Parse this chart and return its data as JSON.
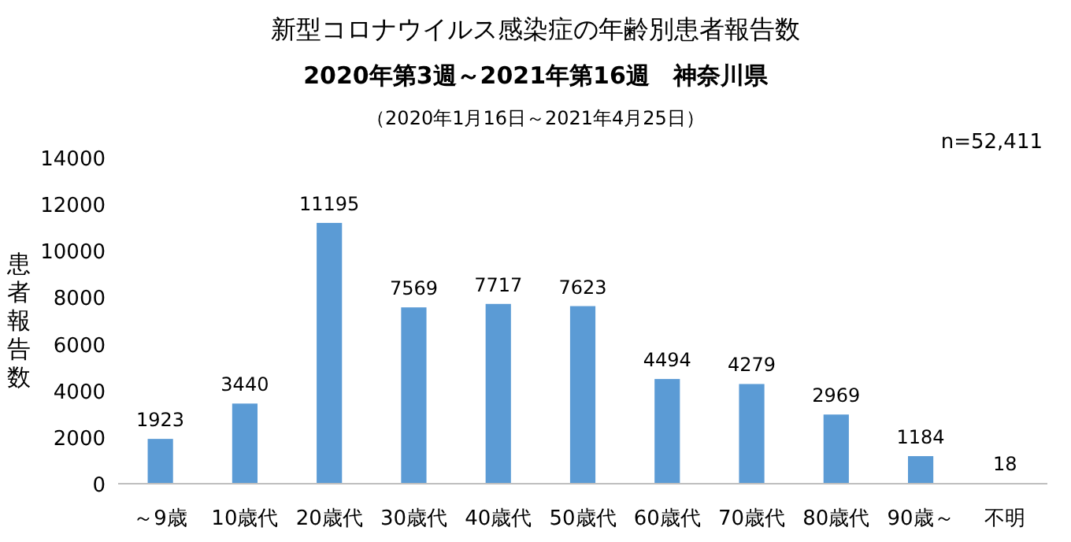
{
  "chart_data": {
    "type": "bar",
    "title": "新型コロナウイルス感染症の年齢別患者報告数",
    "subtitle": "2020年第3週～2021年第16週　神奈川県",
    "annotations": [
      "（2020年1月16日～2021年4月25日）",
      "n=52,411"
    ],
    "ylabel": "患者報告数",
    "categories": [
      "～9歳",
      "10歳代",
      "20歳代",
      "30歳代",
      "40歳代",
      "50歳代",
      "60歳代",
      "70歳代",
      "80歳代",
      "90歳～",
      "不明"
    ],
    "values": [
      1923,
      3440,
      11195,
      7569,
      7717,
      7623,
      4494,
      4279,
      2969,
      1184,
      18
    ],
    "color": "#5b9bd5",
    "ylim": [
      0,
      14000
    ],
    "yticks": [
      0,
      2000,
      4000,
      6000,
      8000,
      10000,
      12000,
      14000
    ],
    "data_labels": true
  }
}
